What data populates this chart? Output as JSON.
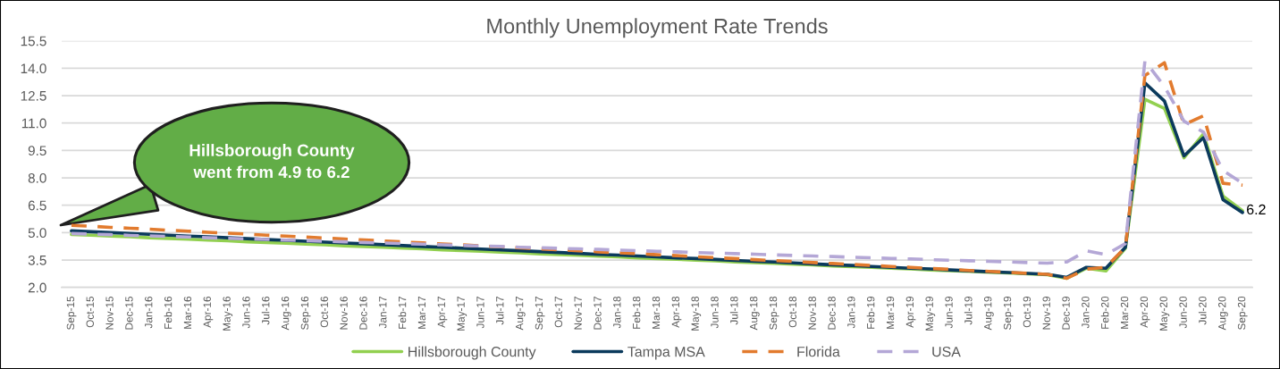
{
  "chart_data": {
    "type": "line",
    "title": "Monthly Unemployment Rate Trends",
    "categories": [
      "Sep-15",
      "Oct-15",
      "Nov-15",
      "Dec-15",
      "Jan-16",
      "Feb-16",
      "Mar-16",
      "Apr-16",
      "May-16",
      "Jun-16",
      "Jul-16",
      "Aug-16",
      "Sep-16",
      "Oct-16",
      "Nov-16",
      "Dec-16",
      "Jan-17",
      "Feb-17",
      "Mar-17",
      "Apr-17",
      "May-17",
      "Jun-17",
      "Jul-17",
      "Aug-17",
      "Sep-17",
      "Oct-17",
      "Nov-17",
      "Dec-17",
      "Jan-18",
      "Feb-18",
      "Mar-18",
      "Apr-18",
      "May-18",
      "Jun-18",
      "Jul-18",
      "Aug-18",
      "Sep-18",
      "Oct-18",
      "Nov-18",
      "Dec-18",
      "Jan-19",
      "Feb-19",
      "Mar-19",
      "Apr-19",
      "May-19",
      "Jun-19",
      "Jul-19",
      "Aug-19",
      "Sep-19",
      "Oct-19",
      "Nov-19",
      "Dec-19",
      "Jan-20",
      "Feb-20",
      "Mar-20",
      "Apr-20",
      "May-20",
      "Jun-20",
      "Jul-20",
      "Aug-20",
      "Sep-20"
    ],
    "series": [
      {
        "name": "Hillsborough County",
        "color": "#92d050",
        "line_style": "solid",
        "values": [
          4.9,
          4.86,
          4.81,
          4.77,
          4.72,
          4.68,
          4.64,
          4.59,
          4.55,
          4.5,
          4.46,
          4.42,
          4.37,
          4.33,
          4.28,
          4.24,
          4.2,
          4.15,
          4.11,
          4.06,
          4.02,
          3.98,
          3.93,
          3.89,
          3.84,
          3.8,
          3.76,
          3.71,
          3.67,
          3.62,
          3.58,
          3.54,
          3.49,
          3.45,
          3.4,
          3.36,
          3.32,
          3.27,
          3.23,
          3.18,
          3.14,
          3.1,
          3.05,
          3.01,
          2.96,
          2.92,
          2.88,
          2.83,
          2.79,
          2.74,
          2.7,
          2.5,
          3.05,
          2.9,
          4.15,
          12.3,
          11.8,
          9.1,
          10.4,
          7.0,
          6.2
        ],
        "value_labels": [
          null,
          null,
          null,
          null,
          null,
          null,
          null,
          null,
          null,
          null,
          null,
          null,
          null,
          null,
          null,
          null,
          null,
          null,
          null,
          null,
          null,
          null,
          null,
          null,
          null,
          null,
          null,
          null,
          null,
          null,
          null,
          null,
          null,
          null,
          null,
          null,
          null,
          null,
          null,
          null,
          null,
          null,
          null,
          null,
          null,
          null,
          null,
          null,
          null,
          null,
          null,
          null,
          null,
          null,
          null,
          null,
          null,
          null,
          null,
          null,
          "6.2"
        ]
      },
      {
        "name": "Tampa MSA",
        "color": "#0b3a5c",
        "line_style": "solid",
        "values": [
          5.1,
          5.05,
          5.0,
          4.96,
          4.91,
          4.86,
          4.81,
          4.77,
          4.72,
          4.67,
          4.62,
          4.58,
          4.53,
          4.48,
          4.43,
          4.39,
          4.34,
          4.29,
          4.24,
          4.2,
          4.15,
          4.1,
          4.05,
          4.01,
          3.96,
          3.91,
          3.86,
          3.81,
          3.77,
          3.72,
          3.67,
          3.62,
          3.58,
          3.53,
          3.48,
          3.43,
          3.39,
          3.34,
          3.29,
          3.24,
          3.2,
          3.15,
          3.1,
          3.05,
          3.01,
          2.96,
          2.91,
          2.86,
          2.82,
          2.77,
          2.72,
          2.55,
          3.1,
          3.05,
          4.2,
          13.2,
          12.2,
          9.2,
          10.2,
          6.8,
          6.1
        ]
      },
      {
        "name": "Florida",
        "color": "#e27b2e",
        "line_style": "dashed",
        "values": [
          5.4,
          5.35,
          5.29,
          5.24,
          5.19,
          5.13,
          5.08,
          5.02,
          4.97,
          4.92,
          4.86,
          4.81,
          4.76,
          4.7,
          4.65,
          4.6,
          4.54,
          4.49,
          4.44,
          4.38,
          4.33,
          4.27,
          4.22,
          4.17,
          4.11,
          4.06,
          4.01,
          3.95,
          3.9,
          3.85,
          3.79,
          3.74,
          3.68,
          3.63,
          3.58,
          3.52,
          3.47,
          3.42,
          3.36,
          3.31,
          3.26,
          3.2,
          3.15,
          3.1,
          3.04,
          2.99,
          2.93,
          2.88,
          2.83,
          2.77,
          2.72,
          2.5,
          3.0,
          3.1,
          4.2,
          13.6,
          14.3,
          10.9,
          11.4,
          7.7,
          7.6
        ]
      },
      {
        "name": "USA",
        "color": "#b4a7d6",
        "line_style": "dashed",
        "values": [
          4.95,
          4.92,
          4.89,
          4.85,
          4.82,
          4.79,
          4.76,
          4.72,
          4.69,
          4.66,
          4.63,
          4.59,
          4.56,
          4.53,
          4.5,
          4.46,
          4.43,
          4.4,
          4.37,
          4.33,
          4.3,
          4.27,
          4.24,
          4.2,
          4.17,
          4.14,
          4.11,
          4.08,
          4.04,
          4.01,
          3.98,
          3.95,
          3.91,
          3.88,
          3.85,
          3.82,
          3.78,
          3.75,
          3.72,
          3.69,
          3.65,
          3.62,
          3.59,
          3.56,
          3.52,
          3.49,
          3.46,
          3.43,
          3.4,
          3.36,
          3.33,
          3.4,
          4.0,
          3.8,
          4.4,
          14.4,
          13.0,
          11.1,
          10.5,
          8.4,
          7.7
        ]
      }
    ],
    "ylim": [
      2,
      15.5
    ],
    "yticks": [
      {
        "value": 2,
        "label": "2.0"
      },
      3.5,
      {
        "value": 5,
        "label": "5.0"
      },
      6.5,
      {
        "value": 8,
        "label": "8.0"
      },
      9.5,
      {
        "value": 11,
        "label": "11.0"
      },
      12.5,
      {
        "value": 14,
        "label": "14.0"
      },
      15.5
    ],
    "grid": "y",
    "legend": "bottom",
    "annotations": [
      "Hillsborough County\nwent from 4.9 to 6.2"
    ]
  }
}
